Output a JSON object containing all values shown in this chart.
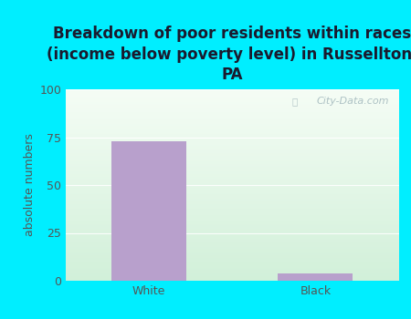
{
  "categories": [
    "White",
    "Black"
  ],
  "values": [
    73,
    4
  ],
  "bar_color": "#b8a0cc",
  "title": "Breakdown of poor residents within races\n(income below poverty level) in Russellton,\nPA",
  "ylabel": "absolute numbers",
  "ylim": [
    0,
    100
  ],
  "yticks": [
    0,
    25,
    50,
    75,
    100
  ],
  "background_outer": "#00eeff",
  "grad_top": "#eaf5ea",
  "grad_bottom": "#d8eedd",
  "title_fontsize": 12,
  "ylabel_fontsize": 9,
  "tick_fontsize": 9,
  "watermark": "City-Data.com"
}
